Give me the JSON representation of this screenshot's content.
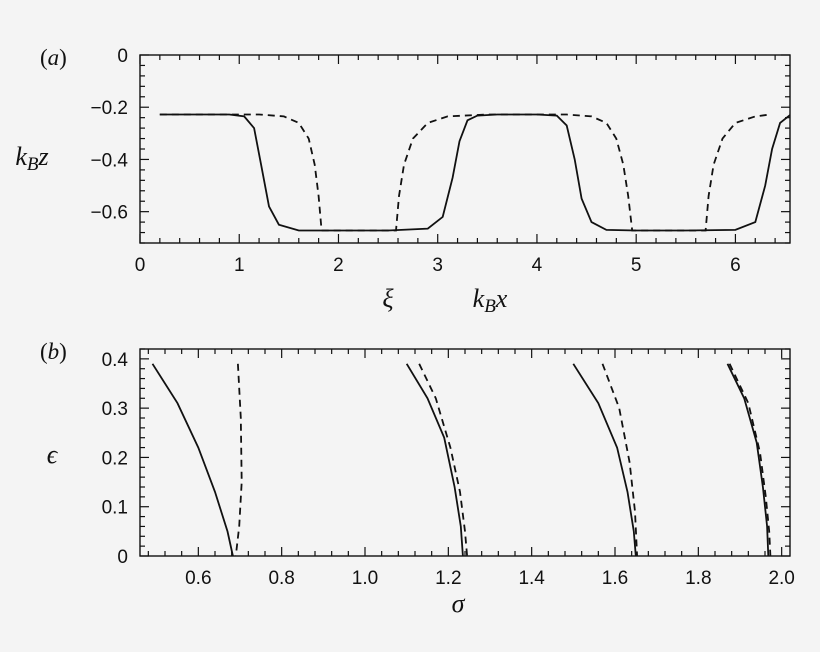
{
  "chart_data": [
    {
      "type": "line",
      "panel_label": "(a)",
      "xlabel_left": "ξ",
      "xlabel_right": "k_B x",
      "ylabel": "k_B z",
      "xlim": [
        0,
        6.55
      ],
      "ylim": [
        -0.72,
        0
      ],
      "x_major_ticks": [
        0,
        1,
        2,
        3,
        4,
        5,
        6
      ],
      "x_tick_labels": [
        "0",
        "1",
        "2",
        "3",
        "4",
        "5",
        "6"
      ],
      "y_major_ticks": [
        -0.6,
        -0.4,
        -0.2,
        0
      ],
      "y_tick_labels": [
        "−0.6",
        "−0.4",
        "−0.2",
        "0"
      ],
      "grid": false,
      "series": [
        {
          "style": "solid",
          "x": [
            0.2,
            0.9,
            1.05,
            1.15,
            1.22,
            1.3,
            1.4,
            1.6,
            2.0,
            2.5,
            2.9,
            3.05,
            3.15,
            3.22,
            3.3,
            3.4,
            3.6,
            4.0,
            4.2,
            4.3,
            4.38,
            4.45,
            4.55,
            4.7,
            5.0,
            5.5,
            6.0,
            6.2,
            6.3,
            6.37,
            6.45,
            6.55
          ],
          "y": [
            -0.228,
            -0.228,
            -0.235,
            -0.28,
            -0.42,
            -0.58,
            -0.65,
            -0.672,
            -0.672,
            -0.672,
            -0.665,
            -0.62,
            -0.47,
            -0.33,
            -0.25,
            -0.232,
            -0.228,
            -0.228,
            -0.232,
            -0.27,
            -0.4,
            -0.55,
            -0.64,
            -0.67,
            -0.672,
            -0.672,
            -0.67,
            -0.64,
            -0.5,
            -0.36,
            -0.26,
            -0.23
          ]
        },
        {
          "style": "dashed",
          "x": [
            0.2,
            1.2,
            1.45,
            1.6,
            1.7,
            1.76,
            1.8,
            1.83,
            2.58,
            2.61,
            2.66,
            2.75,
            2.9,
            3.1,
            3.5,
            4.3,
            4.55,
            4.7,
            4.8,
            4.87,
            4.92,
            4.96,
            5.7,
            5.73,
            5.78,
            5.87,
            6.0,
            6.2,
            6.35
          ],
          "y": [
            -0.228,
            -0.228,
            -0.235,
            -0.26,
            -0.32,
            -0.42,
            -0.54,
            -0.672,
            -0.672,
            -0.54,
            -0.42,
            -0.32,
            -0.26,
            -0.235,
            -0.228,
            -0.228,
            -0.235,
            -0.26,
            -0.32,
            -0.42,
            -0.54,
            -0.672,
            -0.672,
            -0.54,
            -0.42,
            -0.32,
            -0.26,
            -0.235,
            -0.228
          ]
        }
      ]
    },
    {
      "type": "line",
      "panel_label": "(b)",
      "xlabel": "σ",
      "ylabel": "ϵ",
      "xlim": [
        0.46,
        2.02
      ],
      "ylim": [
        0,
        0.42
      ],
      "x_major_ticks": [
        0.6,
        0.8,
        1.0,
        1.2,
        1.4,
        1.6,
        1.8,
        2.0
      ],
      "x_tick_labels": [
        "0.6",
        "0.8",
        "1.0",
        "1.2",
        "1.4",
        "1.6",
        "1.8",
        "2.0"
      ],
      "y_major_ticks": [
        0,
        0.1,
        0.2,
        0.3,
        0.4
      ],
      "y_tick_labels": [
        "0",
        "0.1",
        "0.2",
        "0.3",
        "0.4"
      ],
      "grid": false,
      "series": [
        {
          "style": "solid",
          "x": [
            0.49,
            0.55,
            0.6,
            0.64,
            0.67,
            0.683
          ],
          "y": [
            0.39,
            0.31,
            0.22,
            0.13,
            0.05,
            0
          ]
        },
        {
          "style": "dashed",
          "x": [
            0.695,
            0.702,
            0.704,
            0.698,
            0.69
          ],
          "y": [
            0.39,
            0.28,
            0.15,
            0.06,
            0
          ]
        },
        {
          "style": "solid",
          "x": [
            1.1,
            1.15,
            1.19,
            1.215,
            1.23,
            1.235
          ],
          "y": [
            0.39,
            0.32,
            0.24,
            0.14,
            0.06,
            0
          ]
        },
        {
          "style": "dashed",
          "x": [
            1.13,
            1.17,
            1.205,
            1.228,
            1.24,
            1.245
          ],
          "y": [
            0.39,
            0.32,
            0.22,
            0.13,
            0.05,
            0
          ]
        },
        {
          "style": "solid",
          "x": [
            1.5,
            1.56,
            1.605,
            1.63,
            1.645,
            1.65
          ],
          "y": [
            0.39,
            0.31,
            0.22,
            0.13,
            0.05,
            0
          ]
        },
        {
          "style": "dashed",
          "x": [
            1.57,
            1.61,
            1.635,
            1.648,
            1.653
          ],
          "y": [
            0.39,
            0.3,
            0.19,
            0.09,
            0
          ]
        },
        {
          "style": "solid",
          "x": [
            1.87,
            1.91,
            1.94,
            1.955,
            1.965,
            1.968
          ],
          "y": [
            0.39,
            0.32,
            0.23,
            0.14,
            0.06,
            0
          ]
        },
        {
          "style": "dashed",
          "x": [
            1.875,
            1.92,
            1.948,
            1.962,
            1.97,
            1.973
          ],
          "y": [
            0.39,
            0.31,
            0.21,
            0.12,
            0.05,
            0
          ]
        }
      ]
    }
  ]
}
